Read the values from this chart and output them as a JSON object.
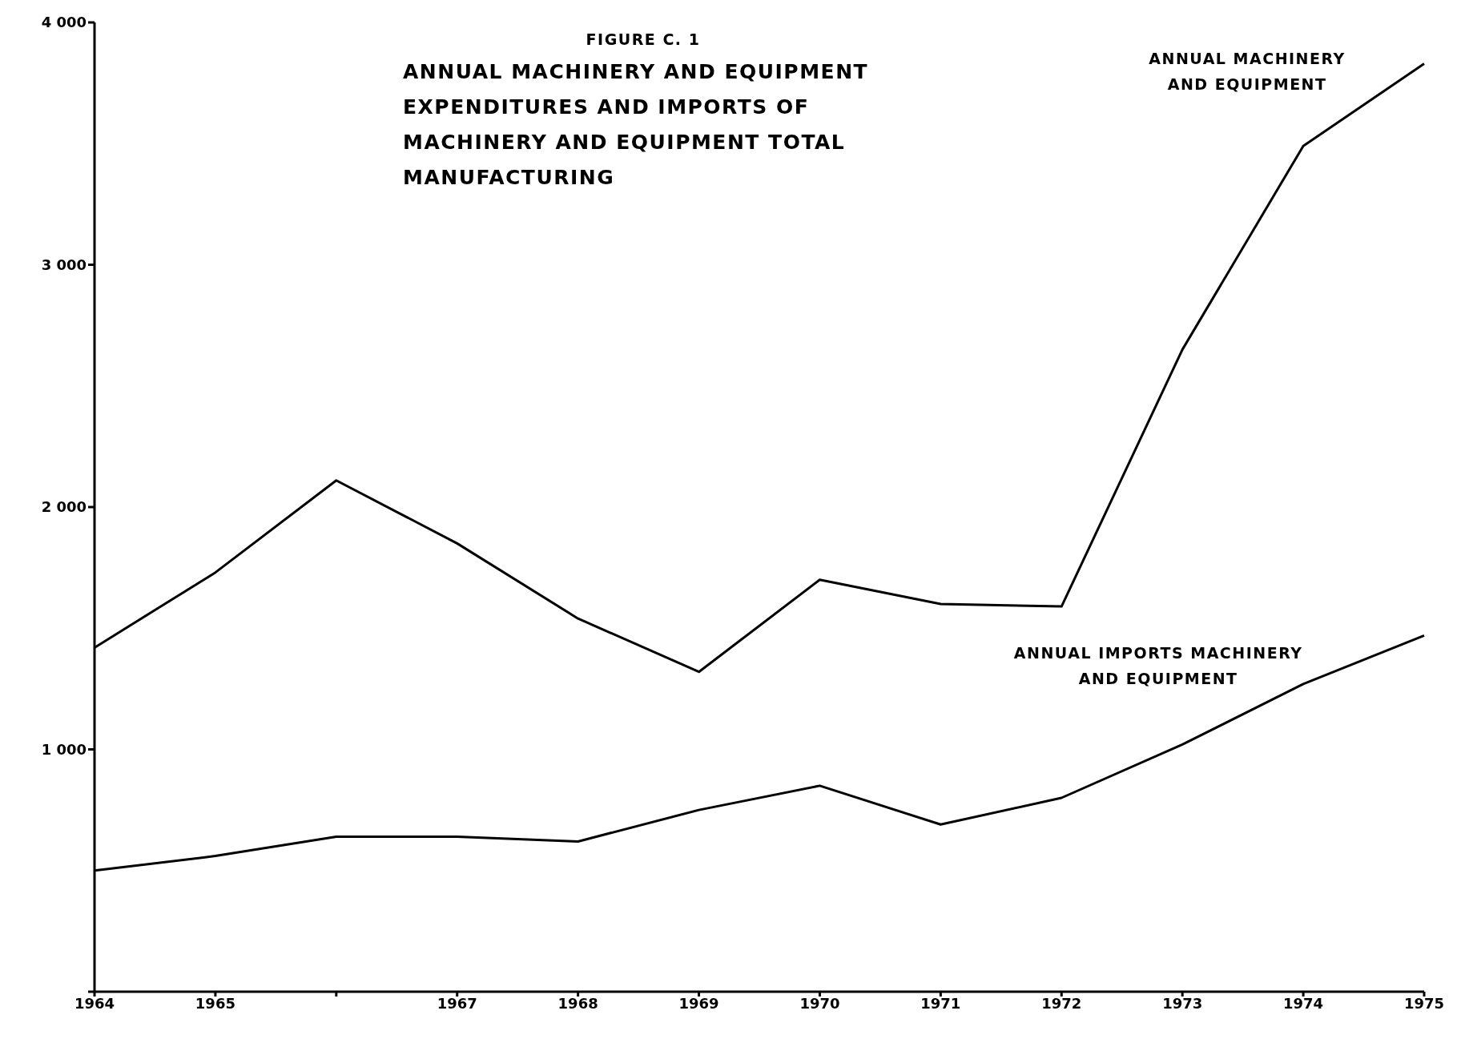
{
  "chart_data": {
    "type": "line",
    "title": "FIGURE C. 1",
    "subtitle": "ANNUAL MACHINERY AND EQUIPMENT EXPENDITURES AND IMPORTS OF MACHINERY AND EQUIPMENT TOTAL MANUFACTURING",
    "categories": [
      "1964",
      "1965",
      null,
      "1967",
      "1968",
      "1969",
      "1970",
      "1971",
      "1972",
      "1973",
      "1974",
      "1975"
    ],
    "series": [
      {
        "name": "ANNUAL MACHINERY AND EQUIPMENT",
        "color": "#000000",
        "values": [
          1420,
          1730,
          2110,
          1850,
          1540,
          1320,
          1700,
          1600,
          1590,
          2650,
          3490,
          3830
        ]
      },
      {
        "name": "ANNUAL IMPORTS MACHINERY AND EQUIPMENT",
        "color": "#000000",
        "values": [
          500,
          560,
          640,
          640,
          620,
          750,
          850,
          690,
          800,
          1020,
          1270,
          1470
        ]
      }
    ],
    "ylim": [
      0,
      4000
    ],
    "yticks": [
      {
        "value": 0,
        "label": null
      },
      {
        "value": 1000,
        "label": "1 000"
      },
      {
        "value": 2000,
        "label": "2 000"
      },
      {
        "value": 3000,
        "label": "3 000"
      },
      {
        "value": 4000,
        "label": "4 000"
      }
    ],
    "grid": false,
    "legend": false,
    "marker": "none",
    "line_style": "solid"
  }
}
